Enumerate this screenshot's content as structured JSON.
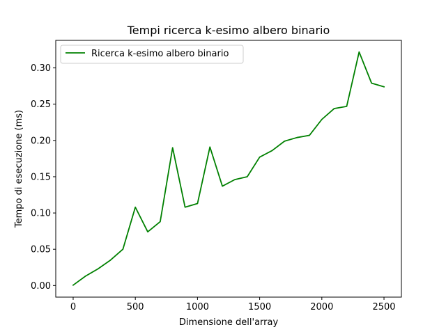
{
  "chart_data": {
    "type": "line",
    "title": "Tempi ricerca k-esimo albero binario",
    "xlabel": "Dimensione dell'array",
    "ylabel": "Tempo di esecuzione (ms)",
    "xlim": [
      -140,
      2640
    ],
    "ylim": [
      -0.016,
      0.338
    ],
    "xticks": [
      0,
      500,
      1000,
      1500,
      2000,
      2500
    ],
    "xtick_labels": [
      "0",
      "500",
      "1000",
      "1500",
      "2000",
      "2500"
    ],
    "yticks": [
      0.0,
      0.05,
      0.1,
      0.15,
      0.2,
      0.25,
      0.3
    ],
    "ytick_labels": [
      "0.00",
      "0.05",
      "0.10",
      "0.15",
      "0.20",
      "0.25",
      "0.30"
    ],
    "grid": false,
    "legend_position": "top-left",
    "series": [
      {
        "name": "Ricerca k-esimo albero binario",
        "color": "#008000",
        "x": [
          0,
          100,
          200,
          300,
          400,
          500,
          600,
          700,
          800,
          900,
          1000,
          1100,
          1200,
          1300,
          1400,
          1500,
          1600,
          1700,
          1800,
          1900,
          2000,
          2100,
          2200,
          2300,
          2400,
          2500
        ],
        "y": [
          0.0005,
          0.013,
          0.023,
          0.035,
          0.05,
          0.108,
          0.074,
          0.088,
          0.19,
          0.108,
          0.113,
          0.191,
          0.137,
          0.146,
          0.15,
          0.177,
          0.186,
          0.199,
          0.204,
          0.207,
          0.229,
          0.244,
          0.247,
          0.322,
          0.279,
          0.274
        ]
      }
    ]
  }
}
